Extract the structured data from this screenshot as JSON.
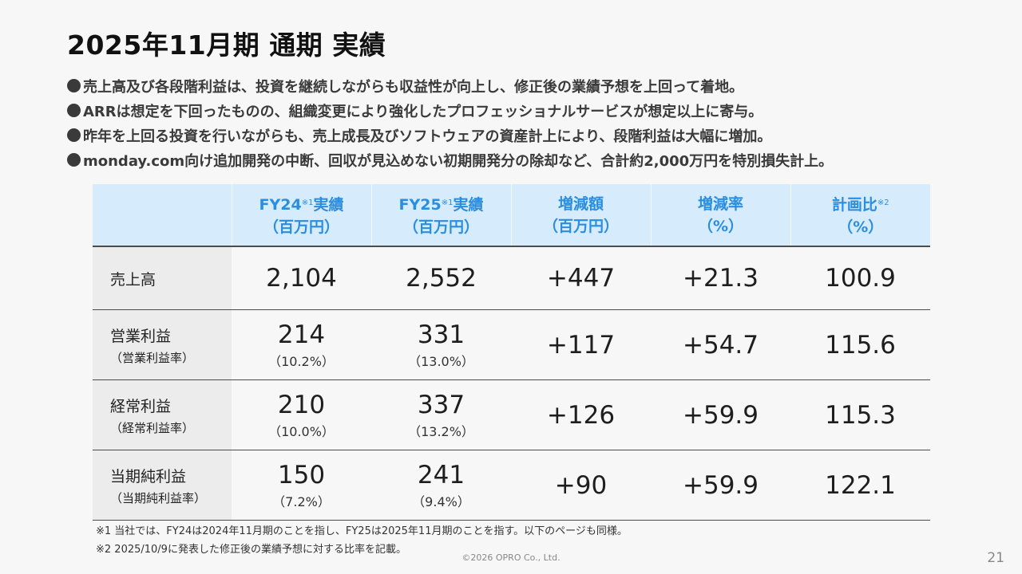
{
  "title": "2025年11月期 通期 実績",
  "bullets": [
    "売上高及び各段階利益は、投資を継続しながらも収益性が向上し、修正後の業績予想を上回って着地。",
    "ARRは想定を下回ったものの、組織変更により強化したプロフェッショナルサービスが想定以上に寄与。",
    "昨年を上回る投資を行いながらも、売上成長及びソフトウェアの資産計上により、段階利益は大幅に増加。",
    "monday.com向け追加開発の中断、回収が見込めない初期開発分の除却など、合計約2,000万円を特別損失計上。"
  ],
  "table": {
    "headers": [
      {
        "main": "FY24",
        "sup": "※1",
        "after": "実績",
        "unit": "（百万円）"
      },
      {
        "main": "FY25",
        "sup": "※1",
        "after": "実績",
        "unit": "（百万円）"
      },
      {
        "main": "増減額",
        "sup": "",
        "after": "",
        "unit": "（百万円）"
      },
      {
        "main": "増減率",
        "sup": "",
        "after": "",
        "unit": "（%）"
      },
      {
        "main": "計画比",
        "sup": "※2",
        "after": "",
        "unit": "（%）"
      }
    ],
    "rows": [
      {
        "label": "売上高",
        "sub": "",
        "fy24": "2,104",
        "fy24_pct": "",
        "fy25": "2,552",
        "fy25_pct": "",
        "diff": "+447",
        "rate": "+21.3",
        "plan": "100.9"
      },
      {
        "label": "営業利益",
        "sub": "（営業利益率）",
        "fy24": "214",
        "fy24_pct": "（10.2%）",
        "fy25": "331",
        "fy25_pct": "（13.0%）",
        "diff": "+117",
        "rate": "+54.7",
        "plan": "115.6"
      },
      {
        "label": "経常利益",
        "sub": "（経常利益率）",
        "fy24": "210",
        "fy24_pct": "（10.0%）",
        "fy25": "337",
        "fy25_pct": "（13.2%）",
        "diff": "+126",
        "rate": "+59.9",
        "plan": "115.3"
      },
      {
        "label": "当期純利益",
        "sub": "（当期純利益率）",
        "fy24": "150",
        "fy24_pct": "（7.2%）",
        "fy25": "241",
        "fy25_pct": "（9.4%）",
        "diff": "+90",
        "rate": "+59.9",
        "plan": "122.1"
      }
    ]
  },
  "notes": [
    "※1 当社では、FY24は2024年11月期のことを指し、FY25は2025年11月期のことを指す。以下のページも同様。",
    "※2 2025/10/9に発表した修正後の業績予想に対する比率を記載。"
  ],
  "copyright": "©2026 OPRO Co., Ltd.",
  "page_number": "21",
  "colors": {
    "header_bg": "#d6ebfc",
    "header_text": "#2a8ee0",
    "label_bg": "#ececec"
  }
}
